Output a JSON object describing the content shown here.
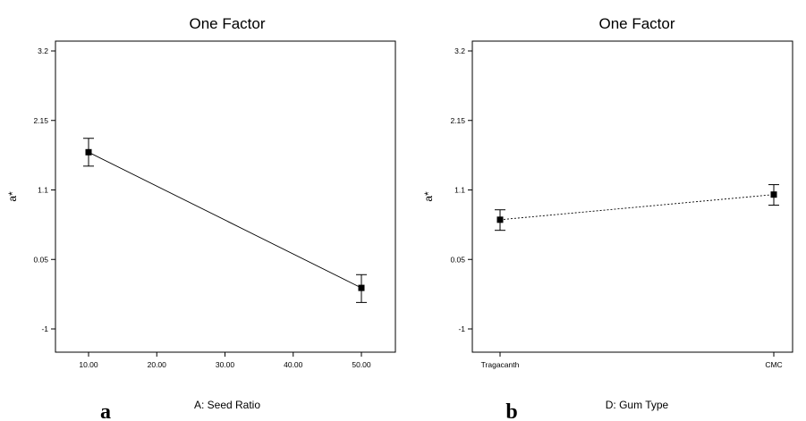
{
  "chart_data": [
    {
      "type": "line",
      "panel": "a",
      "title": "One Factor",
      "xlabel": "A: Seed Ratio",
      "ylabel": "a*",
      "x_ticks": [
        "10.00",
        "20.00",
        "30.00",
        "40.00",
        "50.00"
      ],
      "y_ticks": [
        "3.2",
        "2.15",
        "1.1",
        "0.05",
        "-1"
      ],
      "xlim": [
        10,
        50
      ],
      "ylim": [
        -1,
        3.2
      ],
      "line_style": "solid",
      "points": [
        {
          "x": 10,
          "y": 1.67,
          "err_low": 1.46,
          "err_high": 1.88
        },
        {
          "x": 50,
          "y": -0.38,
          "err_low": -0.6,
          "err_high": -0.18
        }
      ]
    },
    {
      "type": "line",
      "panel": "b",
      "title": "One Factor",
      "xlabel": "D: Gum Type",
      "ylabel": "a*",
      "categories": [
        "Tragacanth",
        "CMC"
      ],
      "y_ticks": [
        "3.2",
        "2.15",
        "1.1",
        "0.05",
        "-1"
      ],
      "ylim": [
        -1,
        3.2
      ],
      "line_style": "dotted",
      "points": [
        {
          "x": "Tragacanth",
          "y": 0.65,
          "err_low": 0.49,
          "err_high": 0.8
        },
        {
          "x": "CMC",
          "y": 1.03,
          "err_low": 0.87,
          "err_high": 1.18
        }
      ]
    }
  ]
}
